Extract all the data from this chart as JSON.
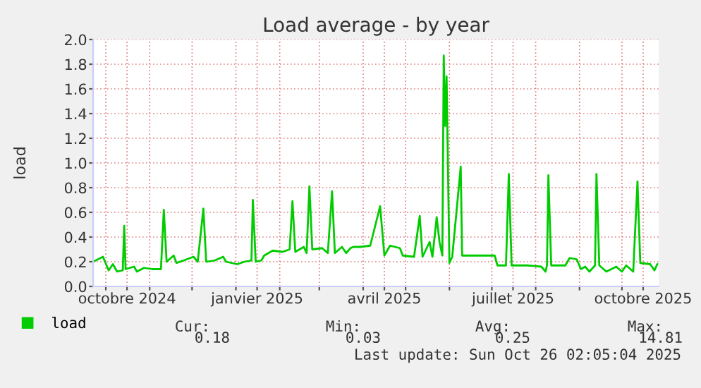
{
  "chart_data": {
    "type": "line",
    "title": "Load average - by year",
    "ylabel": "load",
    "x": [
      "2024-09-22",
      "2024-09-29",
      "2024-10-03",
      "2024-10-06",
      "2024-10-09",
      "2024-10-13",
      "2024-10-14",
      "2024-10-15",
      "2024-10-21",
      "2024-10-23",
      "2024-10-28",
      "2024-11-03",
      "2024-11-09",
      "2024-11-11",
      "2024-11-13",
      "2024-11-18",
      "2024-11-20",
      "2024-11-25",
      "2024-12-02",
      "2024-12-05",
      "2024-12-09",
      "2024-12-11",
      "2024-12-17",
      "2024-12-23",
      "2024-12-25",
      "2025-01-02",
      "2025-01-07",
      "2025-01-12",
      "2025-01-13",
      "2025-01-15",
      "2025-01-19",
      "2025-01-21",
      "2025-01-27",
      "2025-02-03",
      "2025-02-08",
      "2025-02-10",
      "2025-02-12",
      "2025-02-18",
      "2025-02-20",
      "2025-02-22",
      "2025-02-24",
      "2025-03-03",
      "2025-03-07",
      "2025-03-10",
      "2025-03-12",
      "2025-03-17",
      "2025-03-20",
      "2025-03-23",
      "2025-03-25",
      "2025-03-30",
      "2025-04-06",
      "2025-04-13",
      "2025-04-16",
      "2025-04-20",
      "2025-04-27",
      "2025-04-29",
      "2025-05-07",
      "2025-05-11",
      "2025-05-13",
      "2025-05-18",
      "2025-05-20",
      "2025-05-23",
      "2025-05-25",
      "2025-05-27",
      "2025-05-28",
      "2025-05-29",
      "2025-05-30",
      "2025-06-01",
      "2025-06-03",
      "2025-06-09",
      "2025-06-10",
      "2025-06-23",
      "2025-07-03",
      "2025-07-05",
      "2025-07-11",
      "2025-07-13",
      "2025-07-15",
      "2025-07-26",
      "2025-08-05",
      "2025-08-08",
      "2025-08-09",
      "2025-08-10",
      "2025-08-12",
      "2025-08-22",
      "2025-08-25",
      "2025-08-30",
      "2025-09-02",
      "2025-09-05",
      "2025-09-08",
      "2025-09-12",
      "2025-09-13",
      "2025-09-15",
      "2025-09-20",
      "2025-09-27",
      "2025-10-01",
      "2025-10-04",
      "2025-10-09",
      "2025-10-12",
      "2025-10-14",
      "2025-10-21",
      "2025-10-24",
      "2025-10-26"
    ],
    "series": [
      {
        "name": "load",
        "color": "#00cc00",
        "values": [
          0.2,
          0.24,
          0.13,
          0.18,
          0.12,
          0.13,
          0.49,
          0.14,
          0.16,
          0.12,
          0.15,
          0.14,
          0.14,
          0.62,
          0.2,
          0.25,
          0.19,
          0.21,
          0.24,
          0.2,
          0.63,
          0.2,
          0.21,
          0.24,
          0.2,
          0.18,
          0.2,
          0.21,
          0.7,
          0.2,
          0.21,
          0.25,
          0.29,
          0.28,
          0.3,
          0.69,
          0.28,
          0.32,
          0.27,
          0.81,
          0.3,
          0.31,
          0.27,
          0.77,
          0.27,
          0.32,
          0.27,
          0.31,
          0.32,
          0.32,
          0.33,
          0.65,
          0.25,
          0.33,
          0.31,
          0.25,
          0.24,
          0.57,
          0.24,
          0.36,
          0.24,
          0.56,
          0.36,
          0.25,
          1.87,
          1.3,
          1.7,
          0.19,
          0.24,
          0.97,
          0.25,
          0.25,
          0.25,
          0.17,
          0.17,
          0.91,
          0.17,
          0.17,
          0.16,
          0.12,
          0.17,
          0.9,
          0.17,
          0.17,
          0.23,
          0.22,
          0.14,
          0.16,
          0.12,
          0.17,
          0.91,
          0.17,
          0.12,
          0.16,
          0.12,
          0.17,
          0.12,
          0.85,
          0.19,
          0.18,
          0.13,
          0.18
        ]
      }
    ],
    "xlim": [
      "2024-09-22",
      "2025-10-27"
    ],
    "xticks": [
      {
        "value": "2024-10-01",
        "label": null
      },
      {
        "value": "2024-10-16",
        "label": "octobre 2024"
      },
      {
        "value": "2024-11-01",
        "label": null
      },
      {
        "value": "2024-12-01",
        "label": null
      },
      {
        "value": "2025-01-01",
        "label": null
      },
      {
        "value": "2025-01-16",
        "label": "janvier 2025"
      },
      {
        "value": "2025-02-01",
        "label": null
      },
      {
        "value": "2025-03-01",
        "label": null
      },
      {
        "value": "2025-04-01",
        "label": null
      },
      {
        "value": "2025-04-16",
        "label": "avril 2025"
      },
      {
        "value": "2025-05-01",
        "label": null
      },
      {
        "value": "2025-06-01",
        "label": null
      },
      {
        "value": "2025-07-01",
        "label": null
      },
      {
        "value": "2025-07-16",
        "label": "juillet 2025"
      },
      {
        "value": "2025-08-01",
        "label": null
      },
      {
        "value": "2025-09-01",
        "label": null
      },
      {
        "value": "2025-10-01",
        "label": null
      },
      {
        "value": "2025-10-16",
        "label": "octobre 2025"
      }
    ],
    "ylim": [
      0,
      2.0
    ],
    "yticks": [
      {
        "value": 0,
        "label": "0.0"
      },
      {
        "value": 0.2,
        "label": "0.2"
      },
      {
        "value": 0.4,
        "label": "0.4"
      },
      {
        "value": 0.6,
        "label": "0.6"
      },
      {
        "value": 0.8,
        "label": "0.8"
      },
      {
        "value": 1.0,
        "label": "1.0"
      },
      {
        "value": 1.2,
        "label": "1.2"
      },
      {
        "value": 1.4,
        "label": "1.4"
      },
      {
        "value": 1.6,
        "label": "1.6"
      },
      {
        "value": 1.8,
        "label": "1.8"
      },
      {
        "value": 2.0,
        "label": "2.0"
      }
    ],
    "grid": true,
    "legend": "bottom left",
    "line_style": "solid",
    "annotations": [
      "Cur:",
      "Min:",
      "Avg:",
      "Max:",
      "0.18",
      "0.03",
      "0.25",
      "14.81",
      "Last update: Sun Oct 26 02:05:04 2025"
    ]
  }
}
